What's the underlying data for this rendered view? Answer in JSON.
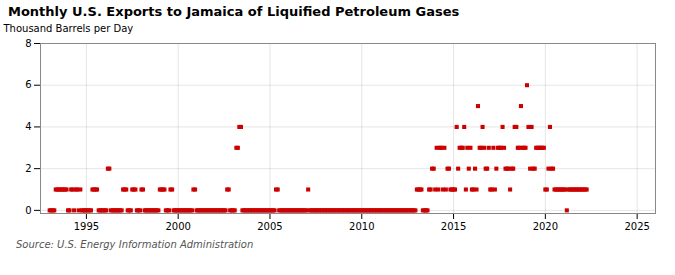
{
  "chart_data": {
    "type": "scatter",
    "title": "Monthly U.S. Exports to Jamaica of Liquified Petroleum Gases",
    "ylabel": "Thousand Barrels per Day",
    "annotations": [
      "Source: U.S. Energy Information Administration"
    ],
    "color": "#cc0000",
    "marker": "square",
    "grid": true,
    "xlim": [
      1992.5,
      2026
    ],
    "ylim": [
      -0.15,
      8
    ],
    "xticks": [
      1995,
      2000,
      2005,
      2010,
      2015,
      2020,
      2025
    ],
    "yticks": [
      0,
      2,
      4,
      6,
      8
    ],
    "x": [
      1993.0,
      1993.08,
      1993.17,
      1993.25,
      1993.33,
      1993.42,
      1993.5,
      1993.58,
      1993.67,
      1993.75,
      1993.83,
      1993.92,
      1994.0,
      1994.08,
      1994.17,
      1994.25,
      1994.33,
      1994.42,
      1994.5,
      1994.58,
      1994.67,
      1994.75,
      1994.83,
      1994.92,
      1995.0,
      1995.08,
      1995.17,
      1995.25,
      1995.33,
      1995.42,
      1995.5,
      1995.58,
      1995.67,
      1995.75,
      1995.83,
      1995.92,
      1996.0,
      1996.08,
      1996.17,
      1996.25,
      1996.33,
      1996.42,
      1996.5,
      1996.58,
      1996.67,
      1996.75,
      1996.83,
      1996.92,
      1997.0,
      1997.08,
      1997.17,
      1997.25,
      1997.33,
      1997.42,
      1997.5,
      1997.58,
      1997.67,
      1997.75,
      1997.83,
      1997.92,
      1998.0,
      1998.08,
      1998.17,
      1998.25,
      1998.33,
      1998.42,
      1998.5,
      1998.58,
      1998.67,
      1998.75,
      1998.83,
      1998.92,
      1999.0,
      1999.08,
      1999.17,
      1999.25,
      1999.33,
      1999.42,
      1999.5,
      1999.58,
      1999.67,
      1999.75,
      1999.83,
      1999.92,
      2000.0,
      2000.08,
      2000.17,
      2000.25,
      2000.33,
      2000.42,
      2000.5,
      2000.58,
      2000.67,
      2000.75,
      2000.83,
      2000.92,
      2001.0,
      2001.08,
      2001.17,
      2001.25,
      2001.33,
      2001.42,
      2001.5,
      2001.58,
      2001.67,
      2001.75,
      2001.83,
      2001.92,
      2002.0,
      2002.08,
      2002.17,
      2002.25,
      2002.33,
      2002.42,
      2002.5,
      2002.58,
      2002.67,
      2002.75,
      2002.83,
      2002.92,
      2003.0,
      2003.08,
      2003.17,
      2003.25,
      2003.33,
      2003.42,
      2003.5,
      2003.58,
      2003.67,
      2003.75,
      2003.83,
      2003.92,
      2004.0,
      2004.08,
      2004.17,
      2004.25,
      2004.33,
      2004.42,
      2004.5,
      2004.58,
      2004.67,
      2004.75,
      2004.83,
      2004.92,
      2005.0,
      2005.08,
      2005.17,
      2005.25,
      2005.33,
      2005.42,
      2005.5,
      2005.58,
      2005.67,
      2005.75,
      2005.83,
      2005.92,
      2006.0,
      2006.08,
      2006.17,
      2006.25,
      2006.33,
      2006.42,
      2006.5,
      2006.58,
      2006.67,
      2006.75,
      2006.83,
      2006.92,
      2007.0,
      2007.08,
      2007.17,
      2007.25,
      2007.33,
      2007.42,
      2007.5,
      2007.58,
      2007.67,
      2007.75,
      2007.83,
      2007.92,
      2008.0,
      2008.08,
      2008.17,
      2008.25,
      2008.33,
      2008.42,
      2008.5,
      2008.58,
      2008.67,
      2008.75,
      2008.83,
      2008.92,
      2009.0,
      2009.08,
      2009.17,
      2009.25,
      2009.33,
      2009.42,
      2009.5,
      2009.58,
      2009.67,
      2009.75,
      2009.83,
      2009.92,
      2010.0,
      2010.08,
      2010.17,
      2010.25,
      2010.33,
      2010.42,
      2010.5,
      2010.58,
      2010.67,
      2010.75,
      2010.83,
      2010.92,
      2011.0,
      2011.08,
      2011.17,
      2011.25,
      2011.33,
      2011.42,
      2011.5,
      2011.58,
      2011.67,
      2011.75,
      2011.83,
      2011.92,
      2012.0,
      2012.08,
      2012.17,
      2012.25,
      2012.33,
      2012.42,
      2012.5,
      2012.58,
      2012.67,
      2012.75,
      2012.83,
      2012.92,
      2013.0,
      2013.08,
      2013.17,
      2013.25,
      2013.33,
      2013.42,
      2013.5,
      2013.58,
      2013.67,
      2013.75,
      2013.83,
      2013.92,
      2014.0,
      2014.08,
      2014.17,
      2014.25,
      2014.33,
      2014.42,
      2014.5,
      2014.58,
      2014.67,
      2014.75,
      2014.83,
      2014.92,
      2015.0,
      2015.08,
      2015.17,
      2015.25,
      2015.33,
      2015.42,
      2015.5,
      2015.58,
      2015.67,
      2015.75,
      2015.83,
      2015.92,
      2016.0,
      2016.08,
      2016.17,
      2016.25,
      2016.33,
      2016.42,
      2016.5,
      2016.58,
      2016.67,
      2016.75,
      2016.83,
      2016.92,
      2017.0,
      2017.08,
      2017.17,
      2017.25,
      2017.33,
      2017.42,
      2017.5,
      2017.58,
      2017.67,
      2017.75,
      2017.83,
      2017.92,
      2018.0,
      2018.08,
      2018.17,
      2018.25,
      2018.33,
      2018.42,
      2018.5,
      2018.58,
      2018.67,
      2018.75,
      2018.83,
      2018.92,
      2019.0,
      2019.08,
      2019.17,
      2019.25,
      2019.33,
      2019.42,
      2019.5,
      2019.58,
      2019.67,
      2019.75,
      2019.83,
      2019.92,
      2020.0,
      2020.08,
      2020.17,
      2020.25,
      2020.33,
      2020.42,
      2020.5,
      2020.58,
      2020.67,
      2020.75,
      2020.83,
      2020.92,
      2021.0,
      2021.08,
      2021.17,
      2021.25,
      2021.33,
      2021.42,
      2021.5,
      2021.58,
      2021.67,
      2021.75,
      2021.83,
      2021.92,
      2022.0,
      2022.08,
      2022.17,
      2022.25
    ],
    "values": [
      0,
      0,
      0,
      0,
      1,
      1,
      1,
      1,
      1,
      1,
      1,
      1,
      0,
      0,
      1,
      1,
      0,
      1,
      1,
      0,
      1,
      0,
      0,
      0,
      0,
      0,
      0,
      0,
      1,
      1,
      1,
      1,
      0,
      0,
      0,
      0,
      0,
      0,
      2,
      2,
      0,
      0,
      0,
      0,
      0,
      0,
      0,
      0,
      1,
      1,
      1,
      0,
      0,
      0,
      1,
      1,
      1,
      0,
      0,
      0,
      1,
      1,
      0,
      0,
      0,
      0,
      0,
      0,
      0,
      0,
      0,
      0,
      1,
      1,
      1,
      1,
      0,
      0,
      0,
      1,
      1,
      0,
      0,
      0,
      0,
      0,
      0,
      0,
      0,
      0,
      0,
      0,
      0,
      0,
      1,
      1,
      0,
      0,
      0,
      0,
      0,
      0,
      0,
      0,
      0,
      0,
      0,
      0,
      0,
      0,
      0,
      0,
      0,
      0,
      0,
      0,
      1,
      1,
      0,
      0,
      0,
      0,
      3,
      3,
      4,
      4,
      0,
      0,
      0,
      0,
      0,
      0,
      0,
      0,
      0,
      0,
      0,
      0,
      0,
      0,
      0,
      0,
      0,
      0,
      0,
      0,
      0,
      0,
      1,
      1,
      0,
      0,
      0,
      0,
      0,
      0,
      0,
      0,
      0,
      0,
      0,
      0,
      0,
      0,
      0,
      0,
      0,
      0,
      0,
      1,
      0,
      0,
      0,
      0,
      0,
      0,
      0,
      0,
      0,
      0,
      0,
      0,
      0,
      0,
      0,
      0,
      0,
      0,
      0,
      0,
      0,
      0,
      0,
      0,
      0,
      0,
      0,
      0,
      0,
      0,
      0,
      0,
      0,
      0,
      0,
      0,
      0,
      0,
      0,
      0,
      0,
      0,
      0,
      0,
      0,
      0,
      0,
      0,
      0,
      0,
      0,
      0,
      0,
      0,
      0,
      0,
      0,
      0,
      0,
      0,
      0,
      0,
      0,
      0,
      0,
      0,
      0,
      0,
      0,
      0,
      1,
      1,
      1,
      1,
      0,
      0,
      0,
      0,
      1,
      1,
      2,
      2,
      1,
      3,
      1,
      3,
      3,
      1,
      3,
      1,
      2,
      2,
      1,
      1,
      1,
      1,
      4,
      2,
      3,
      3,
      3,
      4,
      1,
      3,
      2,
      3,
      1,
      1,
      2,
      1,
      5,
      3,
      3,
      4,
      3,
      2,
      2,
      3,
      1,
      1,
      3,
      1,
      2,
      3,
      3,
      3,
      4,
      3,
      2,
      2,
      2,
      1,
      2,
      2,
      4,
      4,
      3,
      3,
      5,
      3,
      3,
      3,
      6,
      4,
      2,
      4,
      2,
      2,
      3,
      3,
      3,
      3,
      3,
      3,
      1,
      1,
      2,
      4,
      2,
      2,
      1,
      1,
      1,
      1,
      1,
      1,
      1,
      1,
      0,
      1,
      1,
      1,
      1,
      1,
      1,
      1,
      1,
      1,
      1,
      1,
      1,
      1
    ]
  }
}
